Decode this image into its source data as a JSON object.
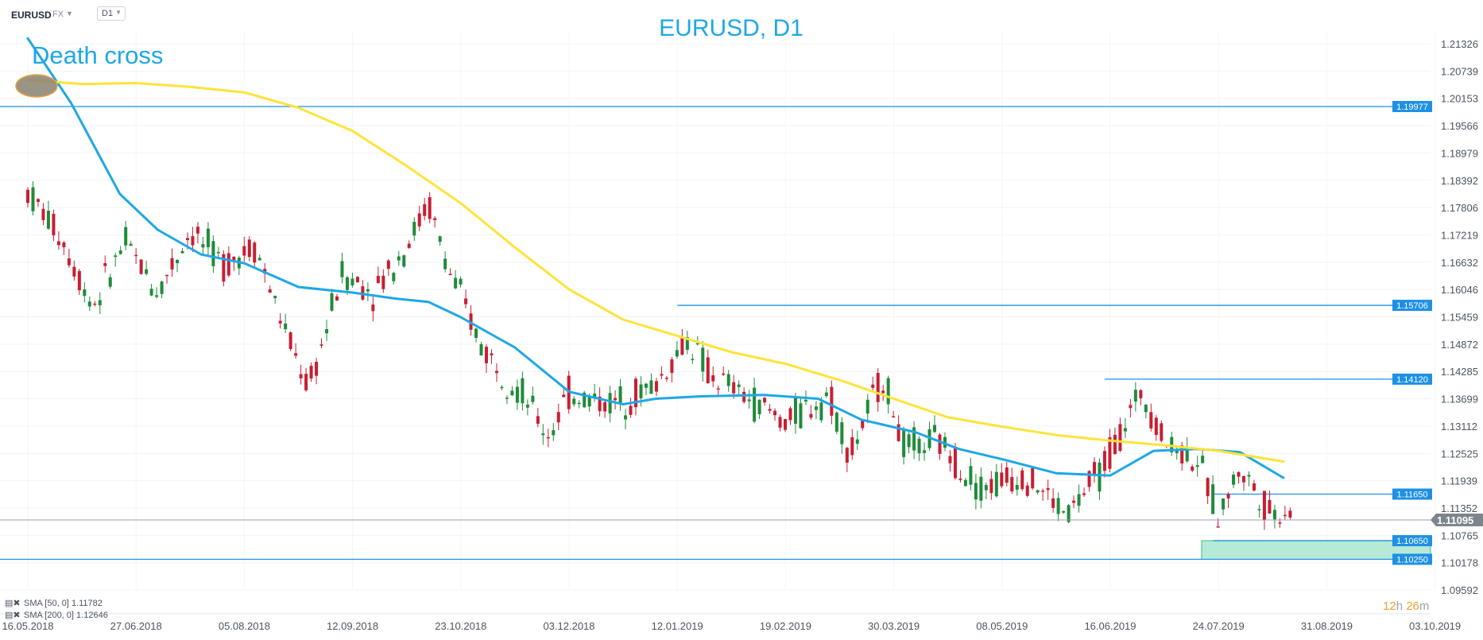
{
  "toolbar": {
    "symbol": "EURUSD",
    "market": "FX",
    "timeframe": "D1"
  },
  "chart_data": {
    "type": "candlestick",
    "title": "EURUSD, D1",
    "annotation": "Death cross",
    "y_ticks": [
      "1.21326",
      "1.20739",
      "1.20153",
      "1.19566",
      "1.18979",
      "1.18392",
      "1.17806",
      "1.17219",
      "1.16632",
      "1.16046",
      "1.15459",
      "1.14872",
      "1.14285",
      "1.13699",
      "1.13112",
      "1.12525",
      "1.11939",
      "1.11352",
      "1.10765",
      "1.10178",
      "1.09592"
    ],
    "ylim": [
      1.09592,
      1.21326
    ],
    "x_ticks": [
      "16.05.2018",
      "27.06.2018",
      "05.08.2018",
      "12.09.2018",
      "23.10.2018",
      "03.12.2018",
      "12.01.2019",
      "19.02.2019",
      "30.03.2019",
      "08.05.2019",
      "16.06.2019",
      "24.07.2019",
      "31.08.2019",
      "03.10.2019"
    ],
    "horizontal_levels": [
      {
        "label": "1.19977",
        "value": 1.19977,
        "start_tick": 0
      },
      {
        "label": "1.15706",
        "value": 1.15706,
        "start_tick": 6
      },
      {
        "label": "1.14120",
        "value": 1.1412,
        "start_tick": 10
      },
      {
        "label": "1.11650",
        "value": 1.1165,
        "start_tick": 11
      },
      {
        "label": "1.10650",
        "value": 1.1065,
        "start_tick": 11
      },
      {
        "label": "1.10250",
        "value": 1.1025,
        "start_tick": 0
      }
    ],
    "support_zone": [
      1.1025,
      1.1065
    ],
    "current_price": "1.11095",
    "sma": [
      {
        "name": "SMA [50, 0]",
        "value": "1.11782",
        "color": "#1ea7e6",
        "points": [
          [
            0,
            1.2144
          ],
          [
            0.4,
            1.2005
          ],
          [
            0.85,
            1.181
          ],
          [
            1.2,
            1.1733
          ],
          [
            1.6,
            1.168
          ],
          [
            2,
            1.1661
          ],
          [
            2.5,
            1.161
          ],
          [
            3,
            1.1598
          ],
          [
            3.4,
            1.1585
          ],
          [
            3.7,
            1.1578
          ],
          [
            4,
            1.1545
          ],
          [
            4.5,
            1.148
          ],
          [
            5,
            1.1385
          ],
          [
            5.5,
            1.1358
          ],
          [
            5.8,
            1.137
          ],
          [
            6.2,
            1.1375
          ],
          [
            6.8,
            1.1378
          ],
          [
            7.3,
            1.137
          ],
          [
            7.7,
            1.1325
          ],
          [
            8.2,
            1.1298
          ],
          [
            8.6,
            1.1262
          ],
          [
            9,
            1.124
          ],
          [
            9.5,
            1.121
          ],
          [
            10,
            1.1205
          ],
          [
            10.4,
            1.1258
          ],
          [
            10.8,
            1.1262
          ],
          [
            11.2,
            1.1255
          ],
          [
            11.6,
            1.12
          ]
        ]
      },
      {
        "name": "SMA [200, 0]",
        "value": "1.12646",
        "color": "#ffe33a",
        "points": [
          [
            0,
            1.2055
          ],
          [
            0.5,
            1.2046
          ],
          [
            1,
            1.2048
          ],
          [
            1.5,
            1.204
          ],
          [
            2,
            1.2028
          ],
          [
            2.5,
            1.1995
          ],
          [
            3,
            1.1945
          ],
          [
            3.5,
            1.187
          ],
          [
            4,
            1.179
          ],
          [
            4.5,
            1.1695
          ],
          [
            5,
            1.1605
          ],
          [
            5.5,
            1.154
          ],
          [
            6,
            1.1505
          ],
          [
            6.5,
            1.147
          ],
          [
            7,
            1.1445
          ],
          [
            7.5,
            1.141
          ],
          [
            8,
            1.137
          ],
          [
            8.5,
            1.133
          ],
          [
            9,
            1.131
          ],
          [
            9.5,
            1.1292
          ],
          [
            10,
            1.128
          ],
          [
            10.5,
            1.127
          ],
          [
            11,
            1.1258
          ],
          [
            11.6,
            1.1235
          ]
        ]
      }
    ],
    "candles_path": [
      [
        0,
        1.1815
      ],
      [
        0.3,
        1.172
      ],
      [
        0.6,
        1.157
      ],
      [
        0.9,
        1.1705
      ],
      [
        1.2,
        1.16
      ],
      [
        1.5,
        1.173
      ],
      [
        1.8,
        1.166
      ],
      [
        2.1,
        1.17
      ],
      [
        2.4,
        1.15
      ],
      [
        2.6,
        1.139
      ],
      [
        2.9,
        1.164
      ],
      [
        3.2,
        1.16
      ],
      [
        3.5,
        1.17
      ],
      [
        3.7,
        1.179
      ],
      [
        3.9,
        1.164
      ],
      [
        4.2,
        1.148
      ],
      [
        4.6,
        1.137
      ],
      [
        4.8,
        1.129
      ],
      [
        5,
        1.138
      ],
      [
        5.4,
        1.136
      ],
      [
        5.8,
        1.14
      ],
      [
        6.1,
        1.15
      ],
      [
        6.3,
        1.142
      ],
      [
        6.6,
        1.138
      ],
      [
        7,
        1.132
      ],
      [
        7.4,
        1.138
      ],
      [
        7.6,
        1.125
      ],
      [
        7.9,
        1.142
      ],
      [
        8.1,
        1.126
      ],
      [
        8.4,
        1.128
      ],
      [
        8.8,
        1.118
      ],
      [
        9.2,
        1.121
      ],
      [
        9.6,
        1.112
      ],
      [
        9.9,
        1.121
      ],
      [
        10.1,
        1.13
      ],
      [
        10.3,
        1.139
      ],
      [
        10.5,
        1.128
      ],
      [
        10.8,
        1.124
      ],
      [
        11,
        1.112
      ],
      [
        11.2,
        1.122
      ],
      [
        11.5,
        1.112
      ],
      [
        11.7,
        1.114
      ]
    ],
    "timer": {
      "hours": "12",
      "h": "h",
      "minutes": "26",
      "m": "m"
    }
  }
}
